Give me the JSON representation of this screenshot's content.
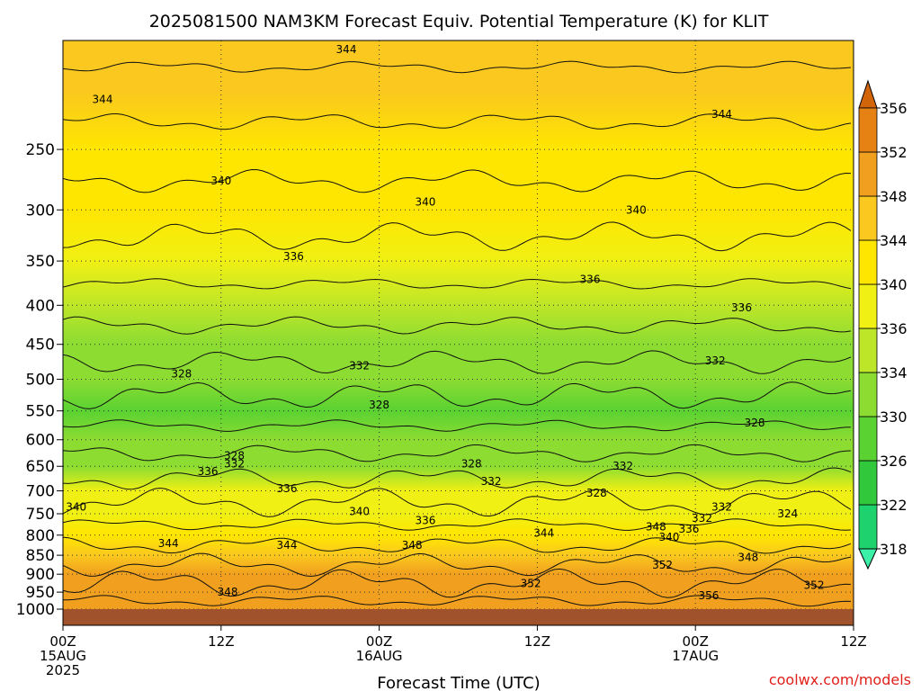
{
  "chart_data": {
    "type": "heatmap",
    "title": "2025081500 NAM3KM Forecast Equiv. Potential Temperature (K) for KLIT",
    "xlabel": "Forecast Time (UTC)",
    "ylabel": "",
    "y_scale": "log",
    "y_reversed": true,
    "ylim": [
      1050,
      180
    ],
    "y_ticks": [
      250,
      300,
      350,
      400,
      450,
      500,
      550,
      600,
      650,
      700,
      750,
      800,
      850,
      900,
      950,
      1000
    ],
    "x_ticks": [
      {
        "hour": 0,
        "lines": [
          "00Z",
          "15AUG",
          "2025"
        ]
      },
      {
        "hour": 12,
        "lines": [
          "12Z"
        ]
      },
      {
        "hour": 24,
        "lines": [
          "00Z",
          "16AUG"
        ]
      },
      {
        "hour": 36,
        "lines": [
          "12Z"
        ]
      },
      {
        "hour": 48,
        "lines": [
          "00Z",
          "17AUG"
        ]
      },
      {
        "hour": 60,
        "lines": [
          "12Z"
        ]
      }
    ],
    "xlim": [
      0,
      60
    ],
    "grid": true,
    "colorbar": {
      "placement": "right",
      "ticks": [
        318,
        322,
        326,
        330,
        334,
        336,
        340,
        344,
        348,
        352,
        356
      ],
      "colors": [
        "#3cf0a8",
        "#1ed26e",
        "#32c83c",
        "#5ad232",
        "#8cdc32",
        "#bee628",
        "#f0f014",
        "#ffe600",
        "#fac81e",
        "#f0a01e",
        "#e68214",
        "#d2640a"
      ]
    },
    "ground_color": "#a0522d",
    "bands": [
      {
        "p": 180,
        "value": 345
      },
      {
        "p": 210,
        "value": 344
      },
      {
        "p": 250,
        "value": 342
      },
      {
        "p": 300,
        "value": 340
      },
      {
        "p": 350,
        "value": 337
      },
      {
        "p": 400,
        "value": 335
      },
      {
        "p": 450,
        "value": 333
      },
      {
        "p": 500,
        "value": 330
      },
      {
        "p": 550,
        "value": 329
      },
      {
        "p": 600,
        "value": 330
      },
      {
        "p": 650,
        "value": 333
      },
      {
        "p": 700,
        "value": 336
      },
      {
        "p": 750,
        "value": 338
      },
      {
        "p": 800,
        "value": 343
      },
      {
        "p": 850,
        "value": 346
      },
      {
        "p": 900,
        "value": 348
      },
      {
        "p": 950,
        "value": 350
      },
      {
        "p": 1000,
        "value": 351
      }
    ],
    "contour_labels": [
      {
        "hour": 21.5,
        "p": 185,
        "text": "344"
      },
      {
        "hour": 3.0,
        "p": 215,
        "text": "344"
      },
      {
        "hour": 50.0,
        "p": 225,
        "text": "344"
      },
      {
        "hour": 12.0,
        "p": 275,
        "text": "340"
      },
      {
        "hour": 27.5,
        "p": 293,
        "text": "340"
      },
      {
        "hour": 43.5,
        "p": 300,
        "text": "340"
      },
      {
        "hour": 17.5,
        "p": 345,
        "text": "336"
      },
      {
        "hour": 40.0,
        "p": 370,
        "text": "336"
      },
      {
        "hour": 51.5,
        "p": 403,
        "text": "336"
      },
      {
        "hour": 9.0,
        "p": 492,
        "text": "328"
      },
      {
        "hour": 22.5,
        "p": 480,
        "text": "332"
      },
      {
        "hour": 49.5,
        "p": 473,
        "text": "332"
      },
      {
        "hour": 24.0,
        "p": 540,
        "text": "328"
      },
      {
        "hour": 52.5,
        "p": 570,
        "text": "328"
      },
      {
        "hour": 13.0,
        "p": 630,
        "text": "328"
      },
      {
        "hour": 13.0,
        "p": 645,
        "text": "332"
      },
      {
        "hour": 11.0,
        "p": 660,
        "text": "336"
      },
      {
        "hour": 31.0,
        "p": 645,
        "text": "328"
      },
      {
        "hour": 42.5,
        "p": 650,
        "text": "332"
      },
      {
        "hour": 32.5,
        "p": 680,
        "text": "332"
      },
      {
        "hour": 17.0,
        "p": 695,
        "text": "336"
      },
      {
        "hour": 40.5,
        "p": 705,
        "text": "328"
      },
      {
        "hour": 1.0,
        "p": 735,
        "text": "340"
      },
      {
        "hour": 22.5,
        "p": 745,
        "text": "340"
      },
      {
        "hour": 27.5,
        "p": 765,
        "text": "336"
      },
      {
        "hour": 50.0,
        "p": 735,
        "text": "332"
      },
      {
        "hour": 55.0,
        "p": 750,
        "text": "324"
      },
      {
        "hour": 48.5,
        "p": 760,
        "text": "332"
      },
      {
        "hour": 45.0,
        "p": 780,
        "text": "348"
      },
      {
        "hour": 36.5,
        "p": 795,
        "text": "344"
      },
      {
        "hour": 47.5,
        "p": 785,
        "text": "336"
      },
      {
        "hour": 46.0,
        "p": 805,
        "text": "340"
      },
      {
        "hour": 8.0,
        "p": 820,
        "text": "344"
      },
      {
        "hour": 17.0,
        "p": 825,
        "text": "344"
      },
      {
        "hour": 26.5,
        "p": 825,
        "text": "348"
      },
      {
        "hour": 52.0,
        "p": 855,
        "text": "348"
      },
      {
        "hour": 45.5,
        "p": 875,
        "text": "352"
      },
      {
        "hour": 35.5,
        "p": 925,
        "text": "352"
      },
      {
        "hour": 57.0,
        "p": 930,
        "text": "352"
      },
      {
        "hour": 12.5,
        "p": 950,
        "text": "348"
      },
      {
        "hour": 49.0,
        "p": 960,
        "text": "356"
      }
    ]
  },
  "credit": "coolwx.com/models"
}
